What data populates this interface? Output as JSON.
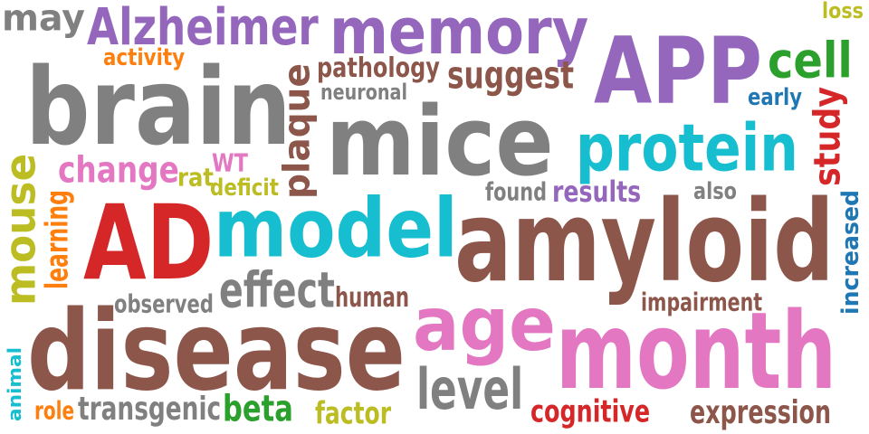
{
  "colors": {
    "gray": "#808080",
    "purple": "#9467bd",
    "brown": "#8c564b",
    "red": "#d62728",
    "teal": "#17becf",
    "pink": "#e377c2",
    "olive": "#bcbd22",
    "orange": "#ff7f0e",
    "green": "#2ca02c",
    "blue": "#1f77b4"
  },
  "words": [
    {
      "text": "may",
      "color": "gray"
    },
    {
      "text": "Alzheimer",
      "color": "purple"
    },
    {
      "text": "memory",
      "color": "purple"
    },
    {
      "text": "loss",
      "color": "olive"
    },
    {
      "text": "activity",
      "color": "orange"
    },
    {
      "text": "APP",
      "color": "purple"
    },
    {
      "text": "cell",
      "color": "green"
    },
    {
      "text": "pathology",
      "color": "brown"
    },
    {
      "text": "suggest",
      "color": "brown"
    },
    {
      "text": "brain",
      "color": "gray"
    },
    {
      "text": "neuronal",
      "color": "gray"
    },
    {
      "text": "early",
      "color": "blue"
    },
    {
      "text": "plaque",
      "color": "brown"
    },
    {
      "text": "mice",
      "color": "gray"
    },
    {
      "text": "study",
      "color": "red"
    },
    {
      "text": "protein",
      "color": "teal"
    },
    {
      "text": "change",
      "color": "pink"
    },
    {
      "text": "rat",
      "color": "olive"
    },
    {
      "text": "WT",
      "color": "pink"
    },
    {
      "text": "deficit",
      "color": "olive"
    },
    {
      "text": "found",
      "color": "gray"
    },
    {
      "text": "results",
      "color": "purple"
    },
    {
      "text": "also",
      "color": "gray"
    },
    {
      "text": "mouse",
      "color": "olive"
    },
    {
      "text": "learning",
      "color": "orange"
    },
    {
      "text": "AD",
      "color": "red"
    },
    {
      "text": "model",
      "color": "teal"
    },
    {
      "text": "amyloid",
      "color": "brown"
    },
    {
      "text": "increased",
      "color": "blue"
    },
    {
      "text": "effect",
      "color": "gray"
    },
    {
      "text": "human",
      "color": "brown"
    },
    {
      "text": "observed",
      "color": "gray"
    },
    {
      "text": "impairment",
      "color": "brown"
    },
    {
      "text": "age",
      "color": "pink"
    },
    {
      "text": "disease",
      "color": "brown"
    },
    {
      "text": "month",
      "color": "pink"
    },
    {
      "text": "animal",
      "color": "teal"
    },
    {
      "text": "level",
      "color": "gray"
    },
    {
      "text": "role",
      "color": "orange"
    },
    {
      "text": "transgenic",
      "color": "gray"
    },
    {
      "text": "beta",
      "color": "green"
    },
    {
      "text": "factor",
      "color": "olive"
    },
    {
      "text": "cognitive",
      "color": "red"
    },
    {
      "text": "expression",
      "color": "brown"
    }
  ]
}
